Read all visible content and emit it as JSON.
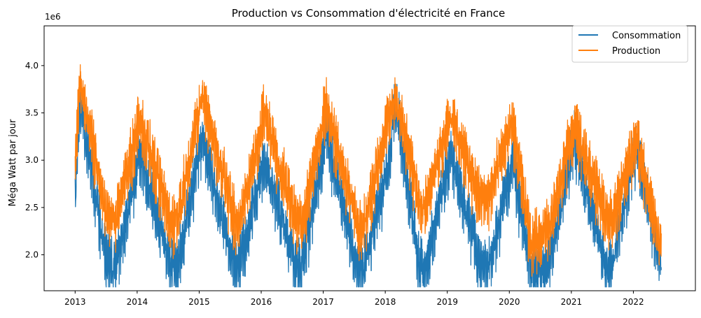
{
  "chart_data": {
    "type": "line",
    "title": "Production vs Consommation d'électricité en France",
    "xlabel": "",
    "ylabel": "Méga Watt par jour",
    "y_offset_text": "1e6",
    "xlim": [
      2012.5,
      2023.0
    ],
    "ylim": [
      1620000,
      4420000
    ],
    "x_ticks": [
      2013,
      2014,
      2015,
      2016,
      2017,
      2018,
      2019,
      2020,
      2021,
      2022
    ],
    "x_tick_labels": [
      "2013",
      "2014",
      "2015",
      "2016",
      "2017",
      "2018",
      "2019",
      "2020",
      "2021",
      "2022"
    ],
    "y_ticks": [
      2000000,
      2500000,
      3000000,
      3500000,
      4000000
    ],
    "y_tick_labels": [
      "2.0",
      "2.5",
      "3.0",
      "3.5",
      "4.0"
    ],
    "grid": false,
    "legend_position": "top-right",
    "x_start": 2013.0,
    "x_end": 2022.45,
    "series": [
      {
        "name": "Consommation",
        "color": "#1f77b4",
        "key_points": {
          "x": [
            2013.0,
            2013.08,
            2013.5,
            2013.65,
            2014.05,
            2014.55,
            2014.65,
            2015.05,
            2015.55,
            2015.65,
            2016.05,
            2016.55,
            2016.65,
            2017.05,
            2017.55,
            2017.65,
            2018.05,
            2018.17,
            2018.55,
            2018.65,
            2019.05,
            2019.55,
            2019.65,
            2020.05,
            2020.35,
            2020.55,
            2020.65,
            2021.05,
            2021.55,
            2021.65,
            2022.05,
            2022.45
          ],
          "y": [
            2550000,
            3700000,
            2000000,
            1900000,
            3150000,
            1950000,
            1950000,
            3300000,
            2000000,
            1950000,
            3050000,
            2000000,
            1950000,
            3350000,
            1950000,
            1900000,
            3000000,
            3700000,
            1950000,
            1900000,
            3150000,
            1950000,
            1900000,
            3050000,
            1900000,
            1950000,
            2000000,
            3300000,
            1950000,
            1950000,
            3250000,
            1900000
          ]
        }
      },
      {
        "name": "Production",
        "color": "#ff7f0e",
        "key_points": {
          "x": [
            2013.0,
            2013.08,
            2013.5,
            2013.65,
            2014.05,
            2014.55,
            2014.65,
            2015.05,
            2015.55,
            2015.65,
            2016.05,
            2016.55,
            2016.65,
            2017.05,
            2017.55,
            2017.65,
            2018.05,
            2018.17,
            2018.55,
            2018.65,
            2019.05,
            2019.55,
            2019.65,
            2020.05,
            2020.35,
            2020.55,
            2020.65,
            2021.05,
            2021.55,
            2021.65,
            2022.05,
            2022.45
          ],
          "y": [
            3000000,
            3900000,
            2500000,
            2450000,
            3500000,
            2400000,
            2450000,
            3750000,
            2500000,
            2400000,
            3550000,
            2450000,
            2350000,
            3650000,
            2400000,
            2350000,
            3500000,
            3750000,
            2650000,
            2600000,
            3550000,
            2650000,
            2650000,
            3450000,
            2200000,
            2300000,
            2350000,
            3450000,
            2500000,
            2400000,
            3300000,
            2100000
          ]
        }
      }
    ]
  }
}
